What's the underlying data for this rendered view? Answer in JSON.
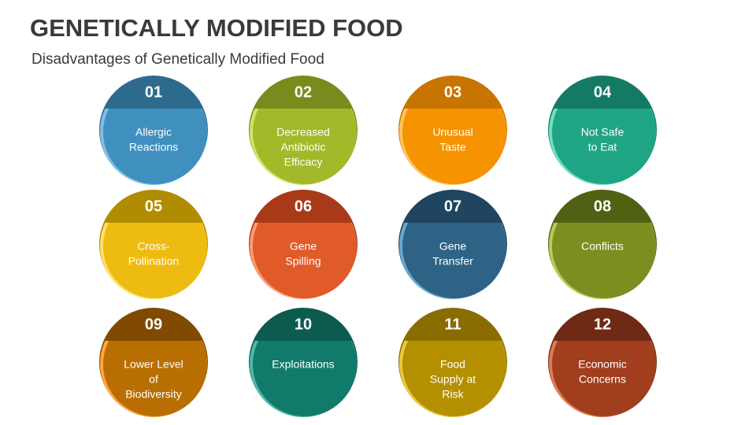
{
  "header": {
    "title": "GENETICALLY MODIFIED FOOD",
    "subtitle": "Disadvantages of Genetically Modified Food"
  },
  "items": [
    {
      "number": "01",
      "lines": [
        "Allergic",
        "Reactions"
      ]
    },
    {
      "number": "02",
      "lines": [
        "Decreased",
        "Antibiotic",
        "Efficacy"
      ]
    },
    {
      "number": "03",
      "lines": [
        "Unusual",
        "Taste"
      ]
    },
    {
      "number": "04",
      "lines": [
        "Not Safe",
        "to Eat"
      ]
    },
    {
      "number": "05",
      "lines": [
        "Cross-",
        "Pollination"
      ]
    },
    {
      "number": "06",
      "lines": [
        "Gene",
        "Spilling"
      ]
    },
    {
      "number": "07",
      "lines": [
        "Gene",
        "Transfer"
      ]
    },
    {
      "number": "08",
      "lines": [
        "Conflicts"
      ]
    },
    {
      "number": "09",
      "lines": [
        "Lower Level",
        "of",
        "Biodiversity"
      ]
    },
    {
      "number": "10",
      "lines": [
        "Exploitations"
      ]
    },
    {
      "number": "11",
      "lines": [
        "Food",
        "Supply at",
        "Risk"
      ]
    },
    {
      "number": "12",
      "lines": [
        "Economic",
        "Concerns"
      ]
    }
  ]
}
